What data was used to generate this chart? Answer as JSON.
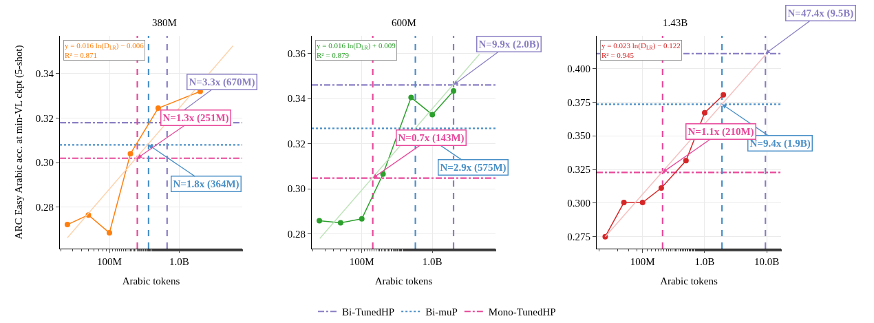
{
  "chart_data": [
    {
      "type": "line",
      "title": "380M",
      "xlabel": "Arabic tokens",
      "ylabel": "ARC Easy Arabic acc. at min-VL ckpt (5-shot)",
      "log": "x",
      "grid": true,
      "legend": "bottom",
      "xlim": [
        19500000.0,
        8000000000.0
      ],
      "xticks": [
        {
          "value": 100000000.0,
          "label": "100M"
        },
        {
          "value": 1000000000.0,
          "label": "1.0B"
        }
      ],
      "ylim": [
        0.2614,
        0.357
      ],
      "yticks": [
        {
          "value": 0.28,
          "label": "0.28"
        },
        {
          "value": 0.3,
          "label": "0.30"
        },
        {
          "value": 0.32,
          "label": "0.32"
        },
        {
          "value": 0.34,
          "label": "0.34"
        }
      ],
      "series": [
        {
          "color": "#ff7f0e",
          "marker": "circle",
          "x": [
            25000000.0,
            50000000.0,
            100000000.0,
            200000000.0,
            500000000.0,
            1000000000.0,
            2000000000.0
          ],
          "values": [
            0.2722,
            0.2765,
            0.2685,
            0.304,
            0.3245,
            null,
            0.332
          ]
        },
        {
          "color": "#fdd3ae",
          "marker": "none",
          "x": [
            25000000.0,
            5900000000.0
          ],
          "values": [
            0.2663,
            0.3525
          ]
        }
      ],
      "ref_lines": [
        {
          "axis": "y",
          "value": 0.318,
          "label": "Bi-TunedHP",
          "color": "#8a7fc4",
          "line_style": "dashdot"
        },
        {
          "axis": "y",
          "value": 0.308,
          "label": "Bi-muP",
          "color": "#4a90c8",
          "line_style": "dotted"
        },
        {
          "axis": "y",
          "value": 0.302,
          "label": "Mono-TunedHP",
          "color": "#e8489a",
          "line_style": "dashdot"
        },
        {
          "axis": "x",
          "value": 670000000.0,
          "color": "#8a7fc4",
          "line_style": "dashed"
        },
        {
          "axis": "x",
          "value": 364000000.0,
          "color": "#4a90c8",
          "line_style": "dashed"
        },
        {
          "axis": "x",
          "value": 251000000.0,
          "color": "#e8489a",
          "line_style": "dashed"
        }
      ],
      "annotations": [
        "y = 0.016 ln(D$_{LR}$) − 0.006",
        "R² = 0.871",
        {
          "text": "N=3.3x (670M)",
          "x": 670000000.0,
          "y": 0.318
        },
        {
          "text": "N=1.8x (364M)",
          "x": 364000000.0,
          "y": 0.308
        },
        {
          "text": "N=1.3x (251M)",
          "x": 251000000.0,
          "y": 0.302
        }
      ]
    },
    {
      "type": "line",
      "title": "600M",
      "xlabel": "Arabic tokens",
      "log": "x",
      "grid": true,
      "xlim": [
        19500000.0,
        7870000000.0
      ],
      "xticks": [
        {
          "value": 100000000.0,
          "label": "100M"
        },
        {
          "value": 1000000000.0,
          "label": "1.0B"
        }
      ],
      "ylim": [
        0.2734,
        0.3679
      ],
      "yticks": [
        {
          "value": 0.28,
          "label": "0.28"
        },
        {
          "value": 0.3,
          "label": "0.30"
        },
        {
          "value": 0.32,
          "label": "0.32"
        },
        {
          "value": 0.34,
          "label": "0.34"
        },
        {
          "value": 0.36,
          "label": "0.36"
        }
      ],
      "series": [
        {
          "color": "#2ca02c",
          "marker": "circle",
          "x": [
            25000000.0,
            50000000.0,
            100000000.0,
            200000000.0,
            500000000.0,
            1000000000.0,
            2000000000.0
          ],
          "values": [
            0.2858,
            0.2849,
            0.2866,
            0.3065,
            0.3405,
            0.3329,
            0.3434
          ]
        },
        {
          "color": "#bfe3ba",
          "marker": "none",
          "x": [
            25400000.0,
            4660000000.0
          ],
          "values": [
            0.2779,
            0.3597
          ]
        }
      ],
      "ref_lines": [
        {
          "axis": "y",
          "value": 0.3461,
          "color": "#8a7fc4",
          "line_style": "dashdot"
        },
        {
          "axis": "y",
          "value": 0.3268,
          "color": "#4a90c8",
          "line_style": "dotted"
        },
        {
          "axis": "y",
          "value": 0.3047,
          "color": "#e8489a",
          "line_style": "dashdot"
        },
        {
          "axis": "x",
          "value": 2000000000.0,
          "color": "#8a7fc4",
          "line_style": "dashed"
        },
        {
          "axis": "x",
          "value": 575000000.0,
          "color": "#4a90c8",
          "line_style": "dashed"
        },
        {
          "axis": "x",
          "value": 143000000.0,
          "color": "#e8489a",
          "line_style": "dashed"
        }
      ],
      "annotations": [
        "y = 0.016 ln(D$_{LR}$) + 0.009",
        "R² = 0.879",
        {
          "text": "N=9.9x (2.0B)",
          "x": 2000000000.0,
          "y": 0.3461
        },
        {
          "text": "N=2.9x (575M)",
          "x": 575000000.0,
          "y": 0.3268
        },
        {
          "text": "N=0.7x (143M)",
          "x": 143000000.0,
          "y": 0.3047
        }
      ]
    },
    {
      "type": "line",
      "title": "1.43B",
      "xlabel": "Arabic tokens",
      "log": "x",
      "grid": true,
      "xlim": [
        18200000.0,
        17000000000.0
      ],
      "xticks": [
        {
          "value": 100000000.0,
          "label": "100M"
        },
        {
          "value": 1000000000.0,
          "label": "1.0B"
        },
        {
          "value": 10000000000.0,
          "label": "10.0B"
        }
      ],
      "ylim": [
        0.2661,
        0.4244
      ],
      "yticks": [
        {
          "value": 0.275,
          "label": "0.275"
        },
        {
          "value": 0.3,
          "label": "0.300"
        },
        {
          "value": 0.325,
          "label": "0.325"
        },
        {
          "value": 0.35,
          "label": "0.350"
        },
        {
          "value": 0.375,
          "label": "0.375"
        },
        {
          "value": 0.4,
          "label": "0.400"
        }
      ],
      "series": [
        {
          "color": "#d62728",
          "marker": "circle",
          "x": [
            25000000.0,
            50000000.0,
            100000000.0,
            200000000.0,
            500000000.0,
            1000000000.0,
            2000000000.0
          ],
          "values": [
            0.275,
            0.3004,
            0.3004,
            0.3112,
            0.3315,
            0.3672,
            0.3805
          ]
        },
        {
          "color": "#f5c0c0",
          "marker": "none",
          "x": [
            25000000.0,
            9500000000.0
          ],
          "values": [
            0.275,
            0.4102
          ]
        }
      ],
      "ref_lines": [
        {
          "axis": "y",
          "value": 0.4111,
          "color": "#8a7fc4",
          "line_style": "dashdot"
        },
        {
          "axis": "y",
          "value": 0.3735,
          "color": "#4a90c8",
          "line_style": "dotted"
        },
        {
          "axis": "y",
          "value": 0.3228,
          "color": "#e8489a",
          "line_style": "dashdot"
        },
        {
          "axis": "x",
          "value": 9500000000.0,
          "color": "#8a7fc4",
          "line_style": "dashed"
        },
        {
          "axis": "x",
          "value": 1900000000.0,
          "color": "#4a90c8",
          "line_style": "dashed"
        },
        {
          "axis": "x",
          "value": 210000000.0,
          "color": "#e8489a",
          "line_style": "dashed"
        }
      ],
      "annotations": [
        "y = 0.023 ln(D$_{LR}$) − 0.122",
        "R² = 0.945",
        {
          "text": "N=47.4x (9.5B)",
          "x": 9500000000.0,
          "y": 0.4111
        },
        {
          "text": "N=9.4x (1.9B)",
          "x": 1900000000.0,
          "y": 0.3735
        },
        {
          "text": "N=1.1x (210M)",
          "x": 210000000.0,
          "y": 0.3228
        }
      ]
    }
  ]
}
